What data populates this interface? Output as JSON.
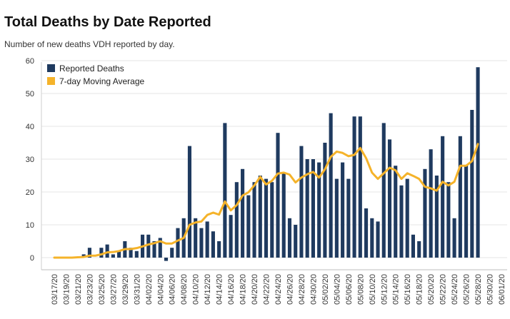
{
  "header": {
    "title": "Total Deaths by Date Reported",
    "subtitle": "Number of new deaths VDH reported by day."
  },
  "chart_data": {
    "type": "bar",
    "title": "Total Deaths by Date Reported",
    "subtitle": "Number of new deaths VDH reported by day.",
    "xlabel": "",
    "ylabel": "",
    "ylim": [
      -3,
      62
    ],
    "yticks": [
      0,
      10,
      20,
      30,
      40,
      50,
      60
    ],
    "grid": true,
    "legend_position": "top-left",
    "colors": {
      "bars": "#1f3a5f",
      "line": "#f5b32a",
      "grid": "#e6e6e6"
    },
    "x_tick_labels": [
      "03/17/20",
      "03/19/20",
      "03/21/20",
      "03/23/20",
      "03/25/20",
      "03/27/20",
      "03/29/20",
      "03/31/20",
      "04/02/20",
      "04/04/20",
      "04/06/20",
      "04/08/20",
      "04/10/20",
      "04/12/20",
      "04/14/20",
      "04/16/20",
      "04/18/20",
      "04/20/20",
      "04/22/20",
      "04/24/20",
      "04/26/20",
      "04/28/20",
      "04/30/20",
      "05/02/20",
      "05/04/20",
      "05/06/20",
      "05/08/20",
      "05/10/20",
      "05/12/20",
      "05/14/20",
      "05/16/20",
      "05/18/20",
      "05/20/20",
      "05/22/20",
      "05/24/20",
      "05/26/20",
      "05/28/20",
      "05/30/20",
      "06/01/20"
    ],
    "categories": [
      "03/17/20",
      "03/18/20",
      "03/19/20",
      "03/20/20",
      "03/21/20",
      "03/22/20",
      "03/23/20",
      "03/24/20",
      "03/25/20",
      "03/26/20",
      "03/27/20",
      "03/28/20",
      "03/29/20",
      "03/30/20",
      "03/31/20",
      "04/01/20",
      "04/02/20",
      "04/03/20",
      "04/04/20",
      "04/05/20",
      "04/06/20",
      "04/07/20",
      "04/08/20",
      "04/09/20",
      "04/10/20",
      "04/11/20",
      "04/12/20",
      "04/13/20",
      "04/14/20",
      "04/15/20",
      "04/16/20",
      "04/17/20",
      "04/18/20",
      "04/19/20",
      "04/20/20",
      "04/21/20",
      "04/22/20",
      "04/23/20",
      "04/24/20",
      "04/25/20",
      "04/26/20",
      "04/27/20",
      "04/28/20",
      "04/29/20",
      "04/30/20",
      "05/01/20",
      "05/02/20",
      "05/03/20",
      "05/04/20",
      "05/05/20",
      "05/06/20",
      "05/07/20",
      "05/08/20",
      "05/09/20",
      "05/10/20",
      "05/11/20",
      "05/12/20",
      "05/13/20",
      "05/14/20",
      "05/15/20",
      "05/16/20",
      "05/17/20",
      "05/18/20",
      "05/19/20",
      "05/20/20",
      "05/21/20",
      "05/22/20",
      "05/23/20",
      "05/24/20",
      "05/25/20",
      "05/26/20",
      "05/27/20",
      "05/28/20",
      "05/29/20",
      "05/30/20",
      "05/31/20",
      "06/01/20"
    ],
    "series": [
      {
        "name": "Reported Deaths",
        "kind": "bar",
        "values": [
          0,
          0,
          0,
          0,
          0,
          1,
          3,
          0,
          3,
          4,
          1,
          2,
          5,
          3,
          2,
          7,
          7,
          5,
          6,
          -1,
          3,
          9,
          12,
          34,
          12,
          9,
          11,
          8,
          5,
          41,
          13,
          23,
          27,
          19,
          23,
          25,
          24,
          23,
          38,
          26,
          12,
          10,
          34,
          30,
          30,
          29,
          35,
          44,
          24,
          29,
          24,
          43,
          43,
          15,
          12,
          11,
          41,
          36,
          28,
          22,
          24,
          7,
          5,
          27,
          33,
          25,
          37,
          23,
          12,
          37,
          28,
          45,
          58,
          null,
          null,
          null,
          null
        ]
      },
      {
        "name": "7-day Moving Average",
        "kind": "line",
        "values": [
          0,
          0,
          0,
          0,
          0.1,
          0.2,
          0.6,
          0.6,
          1,
          1.6,
          1.7,
          2,
          2.6,
          2.6,
          2.9,
          3.4,
          4,
          4.4,
          5,
          4.3,
          4.3,
          5.2,
          6,
          10,
          10.7,
          11,
          13,
          13.7,
          13.1,
          17.1,
          14.4,
          16,
          18.9,
          19.9,
          22,
          24.6,
          22.3,
          23.4,
          25.6,
          25.9,
          25.3,
          22.9,
          24.4,
          25.4,
          26.1,
          24.4,
          26.9,
          30.7,
          32.3,
          31.9,
          30.9,
          31.3,
          33.4,
          30.3,
          25.9,
          24,
          25.7,
          27.4,
          26.6,
          24,
          25.7,
          24.9,
          24,
          21.6,
          21.1,
          20.4,
          23.1,
          22,
          23.1,
          28,
          28,
          29.4,
          34.6,
          null,
          null,
          null,
          null
        ]
      }
    ]
  }
}
